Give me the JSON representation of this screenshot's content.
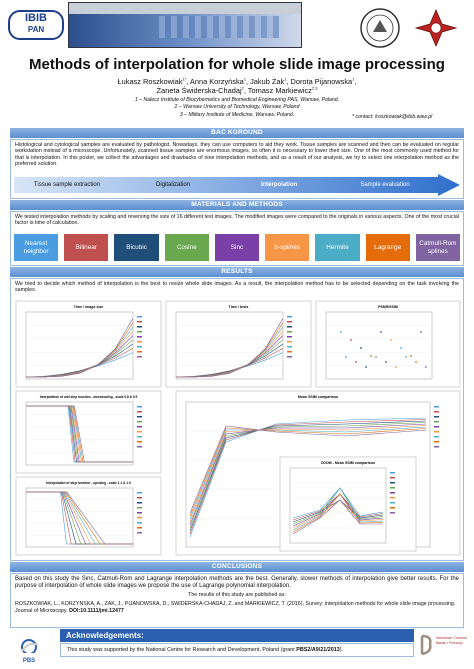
{
  "header": {
    "logo_left": [
      "IBIB",
      "PAN"
    ],
    "logo_bottom_left": "PBS",
    "logo_bottom_right": "Narodowe Centrum Badań i Rozwoju"
  },
  "title": "Methods of interpolation for whole slide image processing",
  "authors": [
    [
      {
        "text": "Łukasz Roszkowiak"
      },
      {
        "sup": "1*"
      },
      {
        "text": ", Anna Korzyńska"
      },
      {
        "sup": "1"
      },
      {
        "text": ", Jakub Żak"
      },
      {
        "sup": "1"
      },
      {
        "text": ", Dorota Pijanowska"
      },
      {
        "sup": "1"
      },
      {
        "text": ","
      }
    ],
    [
      {
        "text": "Żaneta Świderska-Chadaj"
      },
      {
        "sup": "2"
      },
      {
        "text": ", Tomasz Markiewicz"
      },
      {
        "sup": "2,3"
      }
    ]
  ],
  "affiliations": [
    "1 – Nalecz Institute of Biocybernetics and Biomedical Engineering PAS, Warsaw, Poland.",
    "2 – Warsaw University of Technology, Warsaw, Poland",
    "3 – Military Institute of Medicine, Warsaw, Poland."
  ],
  "contact": "* contact: lroszkowiak@ibib.waw.pl",
  "background": {
    "heading": "BAC KGROUND",
    "text": "Histological and cytological samples are evaluated by pathologist. Nowadays, they can use computers to aid they work. Tissue samples are scanned and then can be evaluated on regular workstation instead of a microscope. Unfortunately, scanned tissue samples are enormous images, so often it is necessary to lower their size. One of the most commonly used method for that is interpolation. In this poster, we collect the advantages and drawbacks of nine interpolation methods, and as a result of our analysis, we try to select one interpolation method as the preferred solution.",
    "steps": [
      {
        "label": "Tissue sample extraction",
        "bold": false
      },
      {
        "label": "Digitalization",
        "bold": false
      },
      {
        "label": "Interpolation",
        "bold": true
      },
      {
        "label": "Sample evaluation",
        "bold": false
      }
    ]
  },
  "methods": {
    "heading": "MATERIALS AND METHODS",
    "text": "We tested interpolation methods by scaling and reversing the size of 16 different test images. The modified images were compared to the originals in various aspects. One of the most crucial factor is time of calculation.",
    "items": [
      {
        "name": "Nearest neighbor",
        "color": "#4a9de0"
      },
      {
        "name": "Bilinear",
        "color": "#c0504d"
      },
      {
        "name": "Bicubic",
        "color": "#1f4e79"
      },
      {
        "name": "Cosine",
        "color": "#6aa84f"
      },
      {
        "name": "Sinc",
        "color": "#7b3fa8"
      },
      {
        "name": "b-splines",
        "color": "#f79646"
      },
      {
        "name": "Hermite",
        "color": "#4bacc6"
      },
      {
        "name": "Lagrange",
        "color": "#e46c0a"
      },
      {
        "name": "Catmull-Rom splines",
        "color": "#8064a2"
      }
    ]
  },
  "results": {
    "heading": "RESULTS",
    "text": "We tried to decide which method of interpolation is the best to resize whole slide images. As a result, the interpolation method has to be selected depending on the task involving the samples.",
    "figures": [
      "Time / image size",
      "Time / tests",
      "PSNR/SSIM",
      "Interpolation of unit step function - downscaling - scale 0.8 & 0.9",
      "Mean SSIM comparison",
      "Interpolation of step function - upsizing - scale 1.1 & 1.9",
      "ZOOM - Mean SSIM comparison"
    ]
  },
  "conclusions": {
    "heading": "CONCLUSIONS",
    "text": "Based on this study the Sinc, Catmull-Rom and Lagrange interpolation methods are the best. Generally, slower methods of interpolation give better results. For the purpose of interpolation of whole slide images we propose the use of Lagrange polynomial interpolation.",
    "published_intro": "The results of this study are published as:",
    "reference": [
      {
        "text": "ROSZKOWIAK, L., KORZYNSKA, A., ZAK, J., PIJANOWSKA, D., SWIDERSKA-CHADAJ, Z. and MARKIEWICZ, T. (2016), Survey: interpolation methods for whole slide image processing. Journal of Microscopy. "
      },
      {
        "bold": "DOI:10.1111/jmi.12477"
      }
    ]
  },
  "acknowledgements": {
    "heading": "Acknowledgements:",
    "text": [
      {
        "text": "This study was supported by the National Centre for Research and Development, Poland (grant "
      },
      {
        "bold": "PBS2/A9/21/2013"
      },
      {
        "text": ")."
      }
    ]
  }
}
